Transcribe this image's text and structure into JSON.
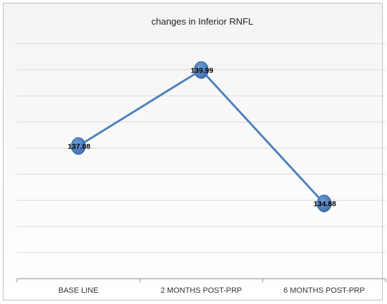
{
  "chart_data": {
    "type": "line",
    "title": "changes in Inferior RNFL",
    "categories": [
      "BASE LINE",
      "2 MONTHS POST-PRP",
      "6 MONTHS POST-PRP"
    ],
    "series": [
      {
        "values": [
          137.08,
          139.99,
          134.88
        ],
        "color": "#4f81bd"
      }
    ],
    "data_labels": [
      "137.08",
      "139.99",
      "134.88"
    ],
    "ylim": [
      132,
      141
    ],
    "grid": true,
    "legend": "none"
  }
}
